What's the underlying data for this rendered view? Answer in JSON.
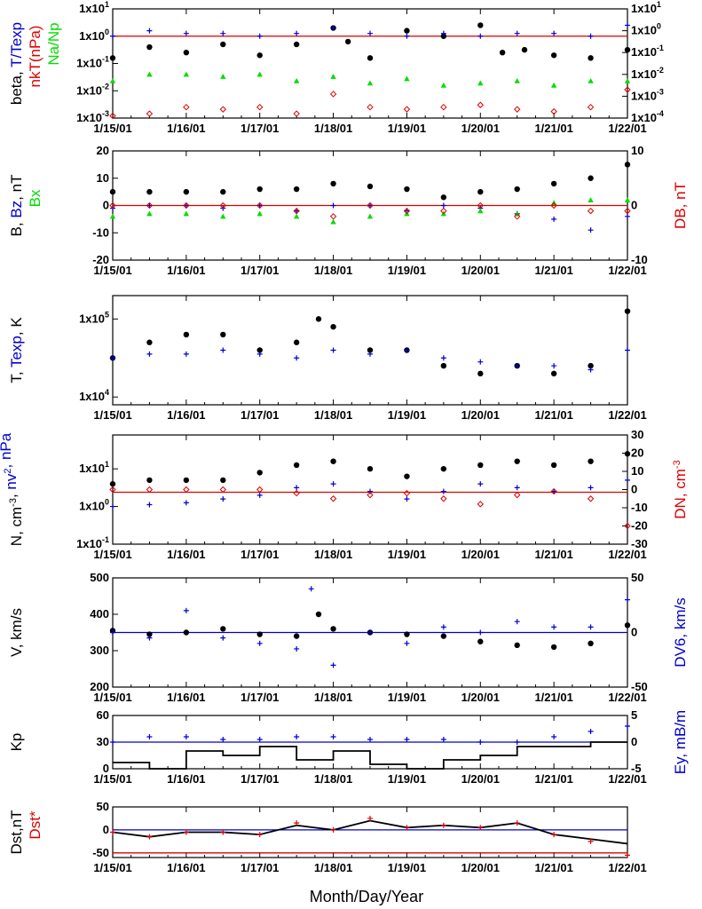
{
  "figure": {
    "x_title": "Month/Day/Year",
    "x_ticks": [
      "1/15/01",
      "1/16/01",
      "1/17/01",
      "1/18/01",
      "1/19/01",
      "1/20/01",
      "1/21/01",
      "1/22/01"
    ],
    "colors": {
      "black": "#000000",
      "blue": "#0000cc",
      "red": "#dd0000",
      "green": "#00dd00"
    }
  },
  "chart_data": [
    {
      "id": "p1",
      "type": "scatter",
      "log_scale": true,
      "left_label_parts": [
        {
          "text": "beta, ",
          "color": "black"
        },
        {
          "text": "T/Texp",
          "color": "blue"
        }
      ],
      "left_label2_parts": [
        {
          "text": "nkT(nPa)",
          "color": "red"
        }
      ],
      "left_label3_parts": [
        {
          "text": "Na/Np",
          "color": "green"
        }
      ],
      "left_ticks": [
        {
          "text": "1x10",
          "exp": "-3"
        },
        {
          "text": "1x10",
          "exp": "-2"
        },
        {
          "text": "1x10",
          "exp": "-1"
        },
        {
          "text": "1x10",
          "exp": "0"
        },
        {
          "text": "1x10",
          "exp": "1"
        }
      ],
      "right_ticks": [
        {
          "text": "1x10",
          "exp": "-4"
        },
        {
          "text": "1x10",
          "exp": "-3"
        },
        {
          "text": "1x10",
          "exp": "-2"
        },
        {
          "text": "1x10",
          "exp": "-1"
        },
        {
          "text": "1x10",
          "exp": "0"
        },
        {
          "text": "1x10",
          "exp": "1"
        }
      ],
      "ylim": [
        -3,
        1
      ],
      "ylim_right": [
        -4,
        1
      ],
      "hlines": [
        {
          "y": 0,
          "color": "red"
        }
      ],
      "series": [
        {
          "color": "black",
          "marker": "dot",
          "axis": "left",
          "x": [
            0,
            0.5,
            1,
            1.5,
            2,
            2.5,
            3,
            3.2,
            3.5,
            4,
            4.5,
            5,
            5.3,
            5.6,
            6,
            6.5,
            7
          ],
          "y": [
            -0.8,
            -0.4,
            -0.6,
            -0.3,
            -0.7,
            -0.3,
            0.3,
            -0.2,
            -0.8,
            0.2,
            0,
            0.4,
            -0.6,
            -0.5,
            -0.7,
            -0.8,
            -0.5
          ]
        },
        {
          "color": "blue",
          "marker": "plus",
          "axis": "left",
          "x": [
            0,
            0.5,
            1,
            1.5,
            2,
            2.5,
            3,
            3.5,
            4,
            4.5,
            5,
            5.5,
            6,
            6.5,
            7
          ],
          "y": [
            0,
            0.2,
            0.1,
            0.1,
            0,
            0.1,
            0.3,
            0.1,
            0,
            0.1,
            0,
            0.1,
            0.1,
            0,
            0.4
          ]
        },
        {
          "color": "green",
          "marker": "triangle",
          "axis": "right",
          "x": [
            0,
            0.5,
            1,
            1.5,
            2,
            2.5,
            3,
            3.5,
            4,
            4.5,
            5,
            5.5,
            6,
            6.5,
            7
          ],
          "y": [
            -2.3,
            -2,
            -2,
            -2.1,
            -2,
            -2.3,
            -2.1,
            -2.4,
            -2.2,
            -2.5,
            -2.4,
            -2.3,
            -2.5,
            -2.3,
            -2.3
          ]
        },
        {
          "color": "red",
          "marker": "diamond",
          "axis": "right",
          "x": [
            0,
            0.5,
            1,
            1.5,
            2,
            2.5,
            3,
            3.5,
            4,
            4.5,
            5,
            5.5,
            6,
            6.5,
            7
          ],
          "y": [
            -3.9,
            -3.8,
            -3.5,
            -3.6,
            -3.5,
            -3.8,
            -2.9,
            -3.5,
            -3.6,
            -3.5,
            -3.4,
            -3.6,
            -3.7,
            -3.5,
            -2.7
          ]
        }
      ]
    },
    {
      "id": "p2",
      "type": "scatter",
      "left_label_parts": [
        {
          "text": "B, ",
          "color": "black"
        },
        {
          "text": "Bz",
          "color": "blue"
        },
        {
          "text": ", nT",
          "color": "black"
        }
      ],
      "left_label2_parts": [
        {
          "text": "Bx",
          "color": "green"
        }
      ],
      "right_label_parts": [
        {
          "text": "DB, nT",
          "color": "red"
        }
      ],
      "left_ticks": [
        "-20",
        "-10",
        "0",
        "10",
        "20"
      ],
      "right_ticks": [
        "-10",
        "0",
        "10"
      ],
      "ylim": [
        -20,
        20
      ],
      "ylim_right": [
        -10,
        10
      ],
      "hlines": [
        {
          "y": 0,
          "color": "red"
        }
      ],
      "series": [
        {
          "color": "black",
          "marker": "dot",
          "axis": "left",
          "x": [
            0,
            0.5,
            1,
            1.5,
            2,
            2.5,
            3,
            3.5,
            4,
            4.5,
            5,
            5.5,
            6,
            6.5,
            7
          ],
          "y": [
            5,
            5,
            5,
            5,
            6,
            6,
            8,
            7,
            6,
            3,
            5,
            6,
            8,
            10,
            15
          ]
        },
        {
          "color": "blue",
          "marker": "plus",
          "axis": "left",
          "x": [
            0,
            0.5,
            1,
            1.5,
            2,
            2.5,
            3,
            3.5,
            4,
            4.5,
            5,
            5.5,
            6,
            6.5,
            7
          ],
          "y": [
            -1,
            0,
            0,
            -1,
            0,
            -2,
            0,
            0,
            -2,
            0,
            -1,
            -3,
            -5,
            -9,
            -4
          ]
        },
        {
          "color": "green",
          "marker": "triangle",
          "axis": "left",
          "x": [
            0,
            0.5,
            1,
            1.5,
            2,
            2.5,
            3,
            3.5,
            4,
            4.5,
            5,
            5.5,
            6,
            6.5,
            7
          ],
          "y": [
            -4,
            -3,
            -3,
            -4,
            -3,
            -4,
            -6,
            -4,
            -3,
            -3,
            -2,
            -3,
            1,
            2,
            2
          ]
        },
        {
          "color": "red",
          "marker": "diamond",
          "axis": "right",
          "x": [
            0,
            0.5,
            1,
            1.5,
            2,
            2.5,
            3,
            3.5,
            4,
            4.5,
            5,
            5.5,
            6,
            6.5,
            7
          ],
          "y": [
            0,
            0,
            0,
            0,
            0,
            -1,
            -2,
            0,
            -1,
            -1,
            0,
            -2,
            0,
            -1,
            -1
          ]
        }
      ]
    },
    {
      "id": "p3",
      "type": "scatter",
      "log_scale": true,
      "left_label_parts": [
        {
          "text": "T, ",
          "color": "black"
        },
        {
          "text": "Texp",
          "color": "blue"
        },
        {
          "text": ", K",
          "color": "black"
        }
      ],
      "left_ticks": [
        {
          "text": "1x10",
          "exp": "4"
        },
        {
          "text": "1x10",
          "exp": "5"
        }
      ],
      "ylim": [
        3.9,
        5.3
      ],
      "series": [
        {
          "color": "black",
          "marker": "dot",
          "axis": "left",
          "x": [
            0,
            0.5,
            1,
            1.5,
            2,
            2.5,
            2.8,
            3,
            3.5,
            4,
            4.5,
            5,
            5.5,
            6,
            6.5,
            7
          ],
          "y": [
            4.5,
            4.7,
            4.8,
            4.8,
            4.6,
            4.7,
            5.0,
            4.9,
            4.6,
            4.6,
            4.4,
            4.3,
            4.4,
            4.3,
            4.4,
            5.1
          ]
        },
        {
          "color": "blue",
          "marker": "plus",
          "axis": "left",
          "x": [
            0,
            0.5,
            1,
            1.5,
            2,
            2.5,
            3,
            3.5,
            4,
            4.5,
            5,
            5.5,
            6,
            6.5,
            7
          ],
          "y": [
            4.5,
            4.55,
            4.55,
            4.6,
            4.55,
            4.5,
            4.6,
            4.55,
            4.6,
            4.5,
            4.45,
            4.4,
            4.4,
            4.35,
            4.6
          ]
        }
      ]
    },
    {
      "id": "p4",
      "type": "scatter",
      "log_scale": true,
      "left_label_parts": [
        {
          "text": "N, cm",
          "color": "black",
          "sup": "-3"
        },
        {
          "text": ", ",
          "color": "black"
        },
        {
          "text": "nv",
          "color": "blue",
          "sup": "2"
        },
        {
          "text": ", nPa",
          "color": "blue"
        }
      ],
      "right_label_parts": [
        {
          "text": "DN, cm",
          "color": "red",
          "sup": "-3"
        }
      ],
      "left_ticks": [
        {
          "text": "1x10",
          "exp": "-1"
        },
        {
          "text": "1x10",
          "exp": "0"
        },
        {
          "text": "1x10",
          "exp": "1"
        }
      ],
      "right_ticks": [
        "-30",
        "-20",
        "-10",
        "0",
        "10",
        "20",
        "30"
      ],
      "ylim": [
        -1,
        1.9
      ],
      "ylim_right": [
        -30,
        30
      ],
      "hlines": [
        {
          "y": 0.38,
          "color": "red"
        }
      ],
      "series": [
        {
          "color": "black",
          "marker": "dot",
          "axis": "left",
          "x": [
            0,
            0.5,
            1,
            1.5,
            2,
            2.5,
            3,
            3.5,
            4,
            4.5,
            5,
            5.5,
            6,
            6.5,
            7
          ],
          "y": [
            0.6,
            0.7,
            0.7,
            0.7,
            0.9,
            1.1,
            1.2,
            1.0,
            0.8,
            1.0,
            1.1,
            1.2,
            1.1,
            1.2,
            1.4
          ]
        },
        {
          "color": "blue",
          "marker": "plus",
          "axis": "left",
          "x": [
            0,
            0.5,
            1,
            1.5,
            2,
            2.5,
            3,
            3.5,
            4,
            4.5,
            5,
            5.5,
            6,
            6.5,
            7
          ],
          "y": [
            0,
            0.05,
            0.1,
            0.2,
            0.3,
            0.5,
            0.6,
            0.4,
            0.2,
            0.4,
            0.6,
            0.5,
            0.4,
            0.5,
            0.7
          ]
        },
        {
          "color": "red",
          "marker": "diamond",
          "axis": "right",
          "x": [
            0,
            0.5,
            1,
            1.5,
            2,
            2.5,
            3,
            3.5,
            4,
            4.5,
            5,
            5.5,
            6,
            6.5,
            7
          ],
          "y": [
            0,
            0,
            0,
            0,
            0,
            -2,
            -5,
            -3,
            -2,
            -5,
            -8,
            -3,
            -1,
            -5,
            -20
          ]
        }
      ]
    },
    {
      "id": "p5",
      "type": "scatter",
      "left_label_parts": [
        {
          "text": "V, km/s",
          "color": "black"
        }
      ],
      "right_label_parts": [
        {
          "text": "DV6, km/s",
          "color": "blue"
        }
      ],
      "left_ticks": [
        "200",
        "300",
        "400",
        "500"
      ],
      "right_ticks": [
        "-50",
        "0",
        "50"
      ],
      "ylim": [
        200,
        500
      ],
      "ylim_right": [
        -50,
        50
      ],
      "hlines": [
        {
          "y": 350,
          "color": "blue"
        }
      ],
      "series": [
        {
          "color": "black",
          "marker": "dot",
          "axis": "left",
          "x": [
            0,
            0.5,
            1,
            1.5,
            2,
            2.5,
            2.8,
            3,
            3.5,
            4,
            4.5,
            5,
            5.5,
            6,
            6.5,
            7
          ],
          "y": [
            355,
            345,
            350,
            360,
            345,
            340,
            400,
            360,
            350,
            345,
            340,
            325,
            315,
            310,
            320,
            370
          ]
        },
        {
          "color": "blue",
          "marker": "plus",
          "axis": "right",
          "x": [
            0,
            0.5,
            1,
            1.5,
            2,
            2.5,
            2.7,
            3,
            3.5,
            4,
            4.5,
            5,
            5.5,
            6,
            6.5,
            7
          ],
          "y": [
            0,
            -5,
            20,
            -5,
            -10,
            -15,
            40,
            -30,
            0,
            -10,
            5,
            0,
            10,
            5,
            5,
            30
          ]
        }
      ]
    },
    {
      "id": "p6",
      "type": "line",
      "left_label_parts": [
        {
          "text": "Kp",
          "color": "black"
        }
      ],
      "right_label_parts": [
        {
          "text": "Ey, mB/m",
          "color": "blue"
        }
      ],
      "left_ticks": [
        "0",
        "30",
        "60"
      ],
      "right_ticks": [
        "-5",
        "0",
        "5"
      ],
      "ylim": [
        0,
        60
      ],
      "ylim_right": [
        -5,
        5
      ],
      "hlines": [
        {
          "y": 30,
          "color": "blue"
        }
      ],
      "series": [
        {
          "color": "black",
          "marker": "step",
          "axis": "left",
          "x": [
            0,
            0.5,
            1,
            1.5,
            2,
            2.5,
            3,
            3.5,
            4,
            4.5,
            5,
            5.5,
            6,
            6.5,
            7
          ],
          "y": [
            7,
            0,
            20,
            15,
            25,
            10,
            20,
            5,
            0,
            10,
            15,
            25,
            25,
            30,
            30
          ]
        },
        {
          "color": "blue",
          "marker": "plus",
          "axis": "right",
          "x": [
            0,
            0.5,
            1,
            1.5,
            2,
            2.5,
            3,
            3.5,
            4,
            4.5,
            5,
            5.5,
            6,
            6.5,
            7
          ],
          "y": [
            0,
            1,
            1,
            0.5,
            0.5,
            1,
            1,
            0.5,
            0.5,
            0.5,
            0,
            0,
            1,
            2,
            3
          ]
        }
      ]
    },
    {
      "id": "p7",
      "type": "line",
      "left_label_parts": [
        {
          "text": "Dst,nT",
          "color": "black"
        }
      ],
      "left_label2_parts": [
        {
          "text": "Dst*",
          "color": "red"
        }
      ],
      "left_ticks": [
        "-50",
        "0",
        "50"
      ],
      "ylim": [
        -60,
        50
      ],
      "hlines": [
        {
          "y": 0,
          "color": "blue"
        },
        {
          "y": -50,
          "color": "red"
        }
      ],
      "series": [
        {
          "color": "black",
          "marker": "line",
          "axis": "left",
          "x": [
            0,
            0.5,
            1,
            1.5,
            2,
            2.5,
            3,
            3.5,
            4,
            4.5,
            5,
            5.5,
            6,
            6.5,
            7
          ],
          "y": [
            -5,
            -15,
            -5,
            -5,
            -10,
            10,
            0,
            20,
            5,
            10,
            5,
            15,
            -10,
            -20,
            -30
          ]
        },
        {
          "color": "red",
          "marker": "plus",
          "axis": "left",
          "x": [
            0,
            0.5,
            1,
            1.5,
            2,
            2.5,
            3,
            3.5,
            4,
            4.5,
            5,
            5.5,
            6,
            6.5,
            7
          ],
          "y": [
            -5,
            -15,
            -5,
            -5,
            -10,
            15,
            0,
            25,
            5,
            10,
            5,
            15,
            -10,
            -25,
            -55
          ]
        }
      ]
    }
  ]
}
